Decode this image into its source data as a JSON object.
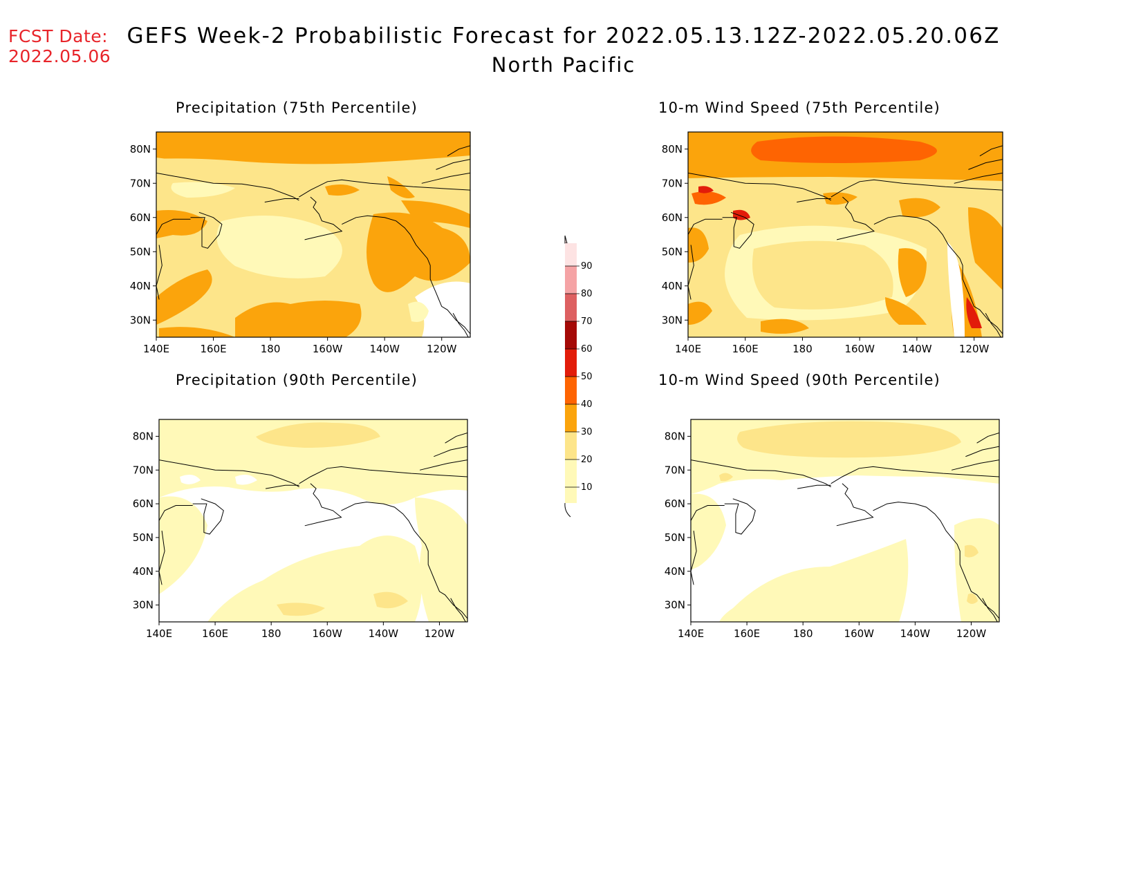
{
  "header": {
    "fcst_label": "FCST Date:",
    "fcst_date": "2022.05.06",
    "title": "GEFS Week-2 Probabilistic Forecast for 2022.05.13.12Z-2022.05.20.06Z",
    "subtitle": "North Pacific"
  },
  "axes": {
    "lon_labels": [
      "140E",
      "160E",
      "180",
      "160W",
      "140W",
      "120W"
    ],
    "lat_labels": [
      "80N",
      "70N",
      "60N",
      "50N",
      "40N",
      "30N"
    ],
    "lon_range": [
      140,
      250
    ],
    "lat_range": [
      25,
      85
    ]
  },
  "panels": [
    {
      "id": "precip75",
      "title": "Precipitation (75th Percentile)"
    },
    {
      "id": "wind75",
      "title": "10-m Wind Speed (75th Percentile)"
    },
    {
      "id": "precip90",
      "title": "Precipitation (90th Percentile)"
    },
    {
      "id": "wind90",
      "title": "10-m Wind Speed (90th Percentile)"
    }
  ],
  "colorbar": {
    "labels": [
      "10",
      "20",
      "30",
      "40",
      "50",
      "60",
      "70",
      "80",
      "90"
    ],
    "colors": [
      "#fff9b8",
      "#fde58a",
      "#fba40c",
      "#fe6402",
      "#e21c0a",
      "#a50a07",
      "#dd6061",
      "#f5a3a5",
      "#fde3e3"
    ]
  }
}
